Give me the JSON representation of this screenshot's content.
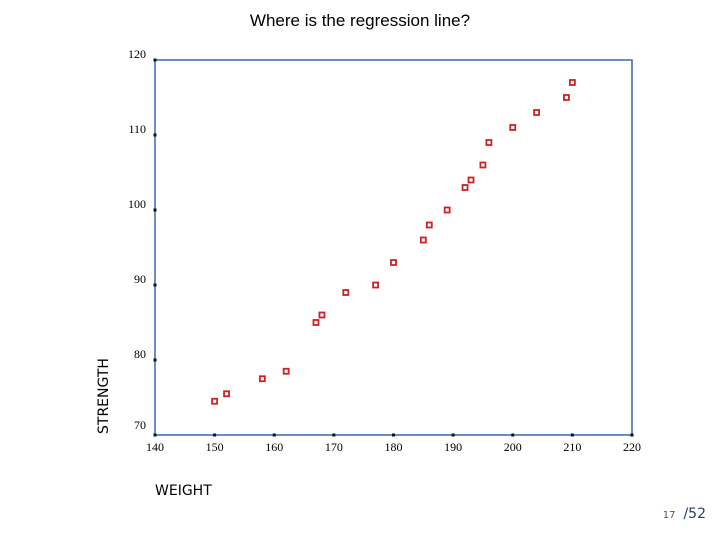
{
  "page": {
    "current": "17",
    "total": "/52"
  },
  "chart_data": {
    "type": "scatter",
    "title": "Where is the regression line?",
    "xlabel": "WEIGHT",
    "ylabel": "STRENGTH",
    "xlim": [
      140,
      220
    ],
    "ylim": [
      70,
      120
    ],
    "xticks": [
      140,
      150,
      160,
      170,
      180,
      190,
      200,
      210,
      220
    ],
    "yticks": [
      70,
      80,
      90,
      100,
      110,
      120
    ],
    "grid": false,
    "marker_color": "#cc2222",
    "axis_color": "#3a66b0",
    "points": [
      {
        "x": 150,
        "y": 74.5
      },
      {
        "x": 152,
        "y": 75.5
      },
      {
        "x": 158,
        "y": 77.5
      },
      {
        "x": 162,
        "y": 78.5
      },
      {
        "x": 167,
        "y": 85
      },
      {
        "x": 168,
        "y": 86
      },
      {
        "x": 172,
        "y": 89
      },
      {
        "x": 177,
        "y": 90
      },
      {
        "x": 180,
        "y": 93
      },
      {
        "x": 185,
        "y": 96
      },
      {
        "x": 186,
        "y": 98
      },
      {
        "x": 189,
        "y": 100
      },
      {
        "x": 192,
        "y": 103
      },
      {
        "x": 193,
        "y": 104
      },
      {
        "x": 195,
        "y": 106
      },
      {
        "x": 196,
        "y": 109
      },
      {
        "x": 200,
        "y": 111
      },
      {
        "x": 204,
        "y": 113
      },
      {
        "x": 209,
        "y": 115
      },
      {
        "x": 210,
        "y": 117
      }
    ]
  }
}
